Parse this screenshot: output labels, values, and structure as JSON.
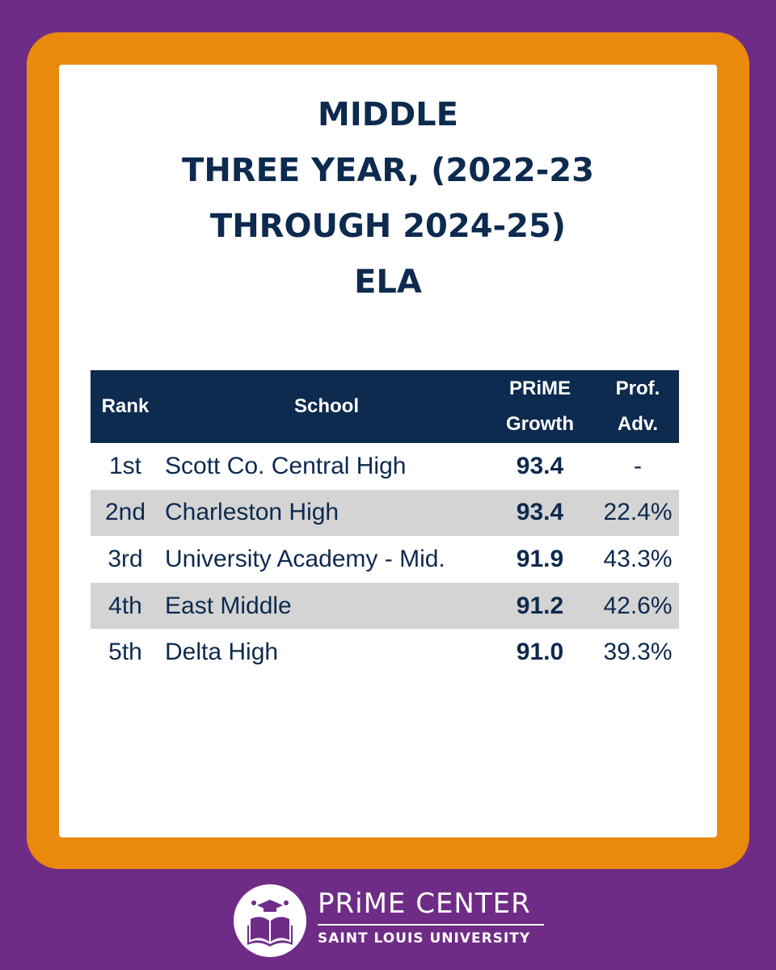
{
  "title": {
    "lines": [
      "MIDDLE",
      "THREE YEAR, (2022-23",
      "THROUGH 2024-25)",
      "ELA"
    ]
  },
  "table": {
    "header": [
      [
        "Rank"
      ],
      [
        "School"
      ],
      [
        "PRiME",
        "Growth"
      ],
      [
        "Prof.",
        "Adv."
      ]
    ],
    "rows": [
      [
        "1st",
        "Scott Co. Central High",
        "93.4",
        "-"
      ],
      [
        "2nd",
        "Charleston High",
        "93.4",
        "22.4%"
      ],
      [
        "3rd",
        "University Academy - Mid.",
        "91.9",
        "43.3%"
      ],
      [
        "4th",
        "East Middle",
        "91.2",
        "42.6%"
      ],
      [
        "5th",
        "Delta High",
        "91.0",
        "39.3%"
      ]
    ]
  },
  "footer": {
    "name": "PRiME CENTER",
    "org": "SAINT LOUIS UNIVERSITY"
  }
}
